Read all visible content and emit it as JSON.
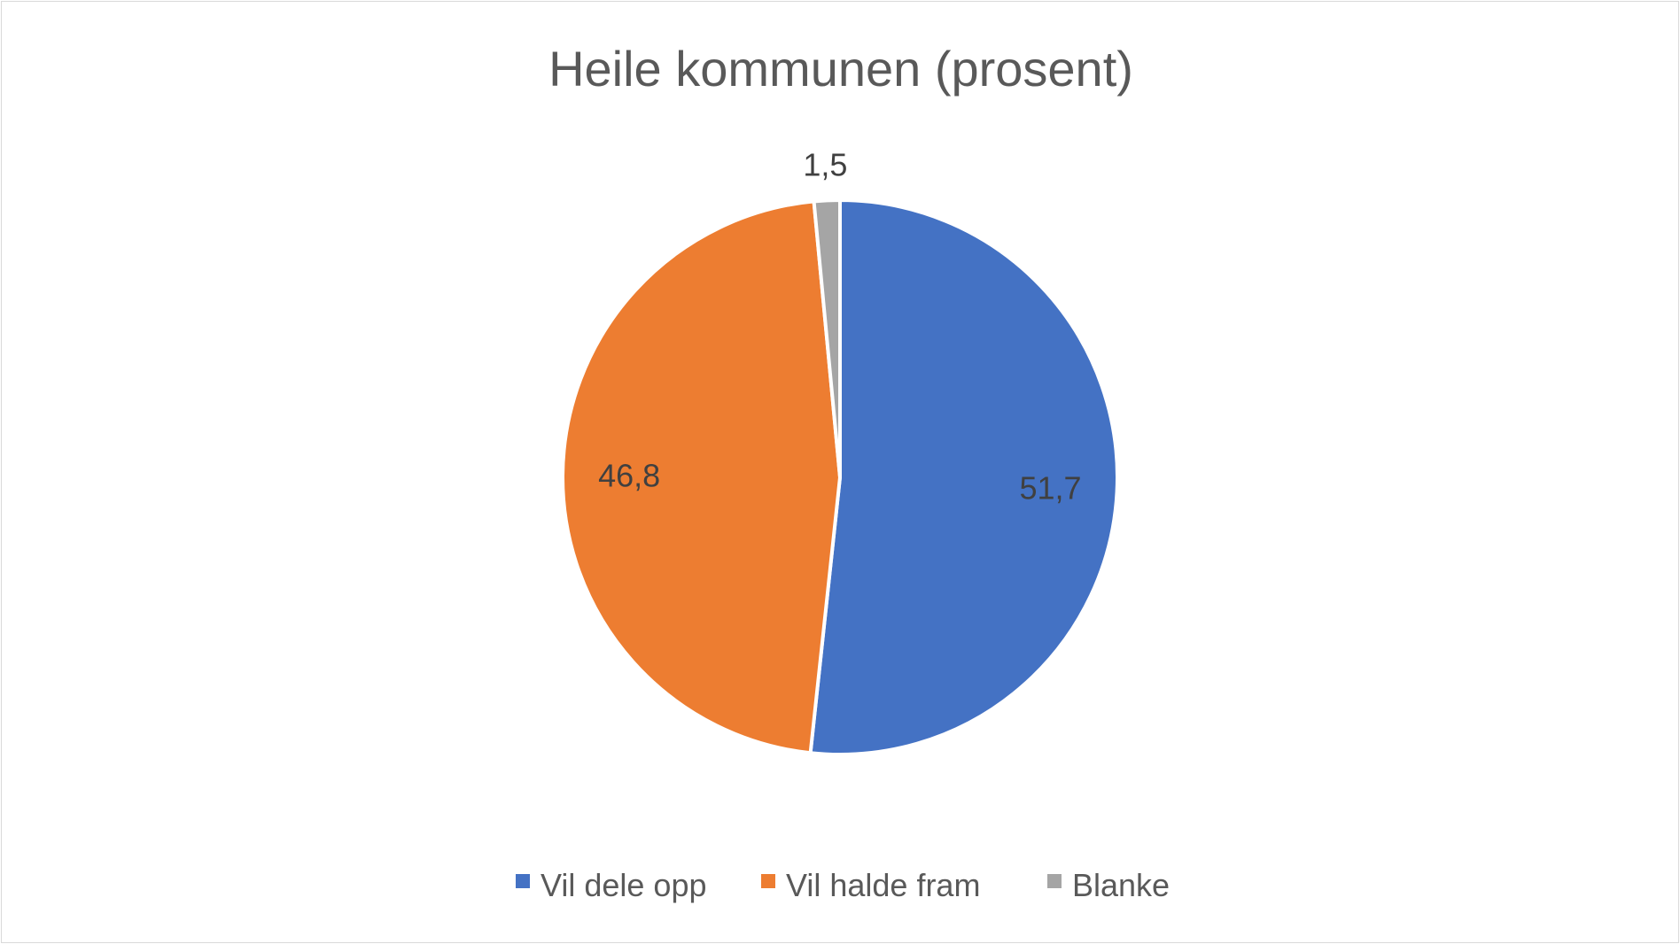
{
  "chart_data": {
    "type": "pie",
    "title": "Heile kommunen (prosent)",
    "categories": [
      "Vil dele opp",
      "Vil halde fram",
      "Blanke"
    ],
    "values": [
      51.7,
      46.8,
      1.5
    ],
    "value_labels": [
      "51,7",
      "46,8",
      "1,5"
    ],
    "colors": [
      "#4472C4",
      "#ED7D31",
      "#A5A5A5"
    ],
    "start_angle_deg": 0,
    "direction": "clockwise",
    "legend_position": "bottom"
  }
}
